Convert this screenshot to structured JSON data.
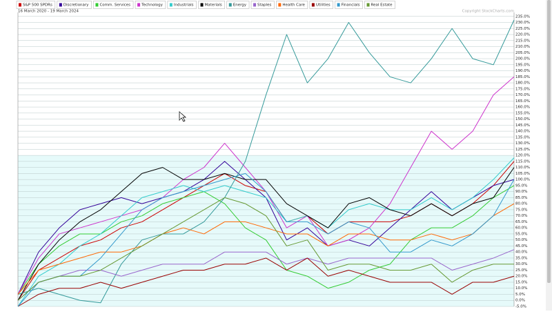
{
  "chart_data": {
    "type": "line",
    "subtitle": "16 March 2020 - 19 March 2024",
    "copyright": "Copyright StockCharts.com",
    "categories": [
      null,
      null,
      null,
      null,
      null,
      null,
      null,
      null,
      null,
      null,
      null,
      null,
      null,
      null,
      null,
      null,
      null,
      null,
      null,
      null,
      null,
      null,
      null,
      null,
      null
    ],
    "ylim": [
      -5,
      236
    ],
    "yticks": [
      {
        "value": -5,
        "label": "-5.0%"
      },
      {
        "value": 0,
        "label": "0.0%"
      },
      {
        "value": 5,
        "label": "5.0%"
      },
      {
        "value": 10,
        "label": "10.0%"
      },
      {
        "value": 15,
        "label": "15.0%"
      },
      {
        "value": 20,
        "label": "20.0%"
      },
      {
        "value": 25,
        "label": "25.0%"
      },
      {
        "value": 30,
        "label": "30.0%"
      },
      {
        "value": 35,
        "label": "35.0%"
      },
      {
        "value": 40,
        "label": "40.0%"
      },
      {
        "value": 45,
        "label": "45.0%"
      },
      {
        "value": 50,
        "label": "50.0%"
      },
      {
        "value": 55,
        "label": "55.0%"
      },
      {
        "value": 60,
        "label": "60.0%"
      },
      {
        "value": 65,
        "label": "65.0%"
      },
      {
        "value": 70,
        "label": "70.0%"
      },
      {
        "value": 75,
        "label": "75.0%"
      },
      {
        "value": 80,
        "label": "80.0%"
      },
      {
        "value": 85,
        "label": "85.0%"
      },
      {
        "value": 90,
        "label": "90.0%"
      },
      {
        "value": 95,
        "label": "95.0%"
      },
      {
        "value": 100,
        "label": "100.0%"
      },
      {
        "value": 105,
        "label": "105.0%"
      },
      {
        "value": 110,
        "label": "110.0%"
      },
      {
        "value": 115,
        "label": "115.0%"
      },
      {
        "value": 120,
        "label": "120.0%"
      },
      {
        "value": 125,
        "label": "125.0%"
      },
      {
        "value": 130,
        "label": "130.0%"
      },
      {
        "value": 135,
        "label": "135.0%"
      },
      {
        "value": 140,
        "label": "140.0%"
      },
      {
        "value": 145,
        "label": "145.0%"
      },
      {
        "value": 150,
        "label": "150.0%"
      },
      {
        "value": 155,
        "label": "155.0%"
      },
      {
        "value": 160,
        "label": "160.0%"
      },
      {
        "value": 165,
        "label": "165.0%"
      },
      {
        "value": 170,
        "label": "170.0%"
      },
      {
        "value": 175,
        "label": "175.0%"
      },
      {
        "value": 180,
        "label": "180.0%"
      },
      {
        "value": 185,
        "label": "185.0%"
      },
      {
        "value": 190,
        "label": "190.0%"
      },
      {
        "value": 195,
        "label": "195.0%"
      },
      {
        "value": 200,
        "label": "200.0%"
      },
      {
        "value": 205,
        "label": "205.0%"
      },
      {
        "value": 210,
        "label": "210.0%"
      },
      {
        "value": 215,
        "label": "215.0%"
      },
      {
        "value": 220,
        "label": "220.0%"
      },
      {
        "value": 225,
        "label": "225.0%"
      },
      {
        "value": 230,
        "label": "230.0%"
      },
      {
        "value": 235,
        "label": "235.0%"
      }
    ],
    "grid": true,
    "series": [
      {
        "name": "S&P 500 SPDRs",
        "color": "#cc0000",
        "values": [
          0,
          25,
          35,
          45,
          50,
          60,
          65,
          75,
          85,
          95,
          105,
          95,
          90,
          65,
          70,
          55,
          65,
          65,
          65,
          70,
          80,
          70,
          80,
          95,
          115
        ]
      },
      {
        "name": "Discretionary",
        "color": "#330099",
        "values": [
          5,
          40,
          60,
          75,
          80,
          85,
          80,
          85,
          90,
          100,
          115,
          100,
          85,
          50,
          60,
          45,
          50,
          45,
          60,
          75,
          90,
          75,
          85,
          95,
          100
        ]
      },
      {
        "name": "Comm. Services",
        "color": "#33cc33",
        "values": [
          5,
          30,
          45,
          55,
          55,
          65,
          70,
          80,
          85,
          90,
          80,
          60,
          50,
          25,
          20,
          10,
          15,
          25,
          30,
          50,
          60,
          60,
          70,
          85,
          95
        ]
      },
      {
        "name": "Technology",
        "color": "#cc33cc",
        "values": [
          5,
          35,
          55,
          60,
          65,
          70,
          75,
          85,
          100,
          110,
          130,
          110,
          90,
          60,
          70,
          45,
          50,
          60,
          80,
          110,
          140,
          125,
          140,
          170,
          185
        ]
      },
      {
        "name": "Industrials",
        "color": "#33cccc",
        "values": [
          -5,
          20,
          30,
          45,
          55,
          70,
          85,
          90,
          95,
          90,
          95,
          90,
          85,
          65,
          70,
          60,
          75,
          80,
          75,
          75,
          85,
          75,
          85,
          100,
          118
        ]
      },
      {
        "name": "Materials",
        "color": "#000000",
        "values": [
          0,
          30,
          50,
          65,
          75,
          90,
          105,
          110,
          100,
          100,
          105,
          100,
          100,
          80,
          70,
          60,
          80,
          85,
          75,
          70,
          80,
          70,
          80,
          85,
          110
        ]
      },
      {
        "name": "Energy",
        "color": "#339999",
        "values": [
          5,
          10,
          5,
          0,
          -2,
          30,
          50,
          55,
          55,
          65,
          85,
          115,
          170,
          220,
          180,
          200,
          230,
          205,
          185,
          180,
          200,
          225,
          200,
          195,
          232
        ]
      },
      {
        "name": "Staples",
        "color": "#9966cc",
        "values": [
          0,
          15,
          20,
          25,
          25,
          20,
          25,
          30,
          30,
          30,
          40,
          40,
          40,
          30,
          35,
          30,
          35,
          35,
          35,
          35,
          35,
          25,
          30,
          35,
          42
        ]
      },
      {
        "name": "Health Care",
        "color": "#ff6600",
        "values": [
          5,
          25,
          30,
          35,
          40,
          40,
          45,
          55,
          60,
          55,
          65,
          65,
          60,
          55,
          55,
          45,
          55,
          55,
          50,
          50,
          55,
          50,
          55,
          70,
          80
        ]
      },
      {
        "name": "Utilities",
        "color": "#990000",
        "values": [
          -5,
          5,
          10,
          10,
          15,
          10,
          15,
          20,
          25,
          25,
          30,
          30,
          35,
          25,
          35,
          20,
          25,
          20,
          15,
          15,
          15,
          5,
          15,
          15,
          20
        ]
      },
      {
        "name": "Financials",
        "color": "#3399cc",
        "values": [
          -5,
          15,
          20,
          20,
          35,
          55,
          75,
          85,
          90,
          95,
          100,
          105,
          90,
          65,
          65,
          55,
          65,
          60,
          40,
          40,
          50,
          45,
          55,
          70,
          100
        ]
      },
      {
        "name": "Real Estate",
        "color": "#669933",
        "values": [
          0,
          15,
          20,
          20,
          25,
          35,
          45,
          55,
          65,
          75,
          85,
          80,
          70,
          45,
          50,
          25,
          30,
          30,
          25,
          25,
          30,
          15,
          25,
          30,
          30
        ]
      }
    ]
  }
}
